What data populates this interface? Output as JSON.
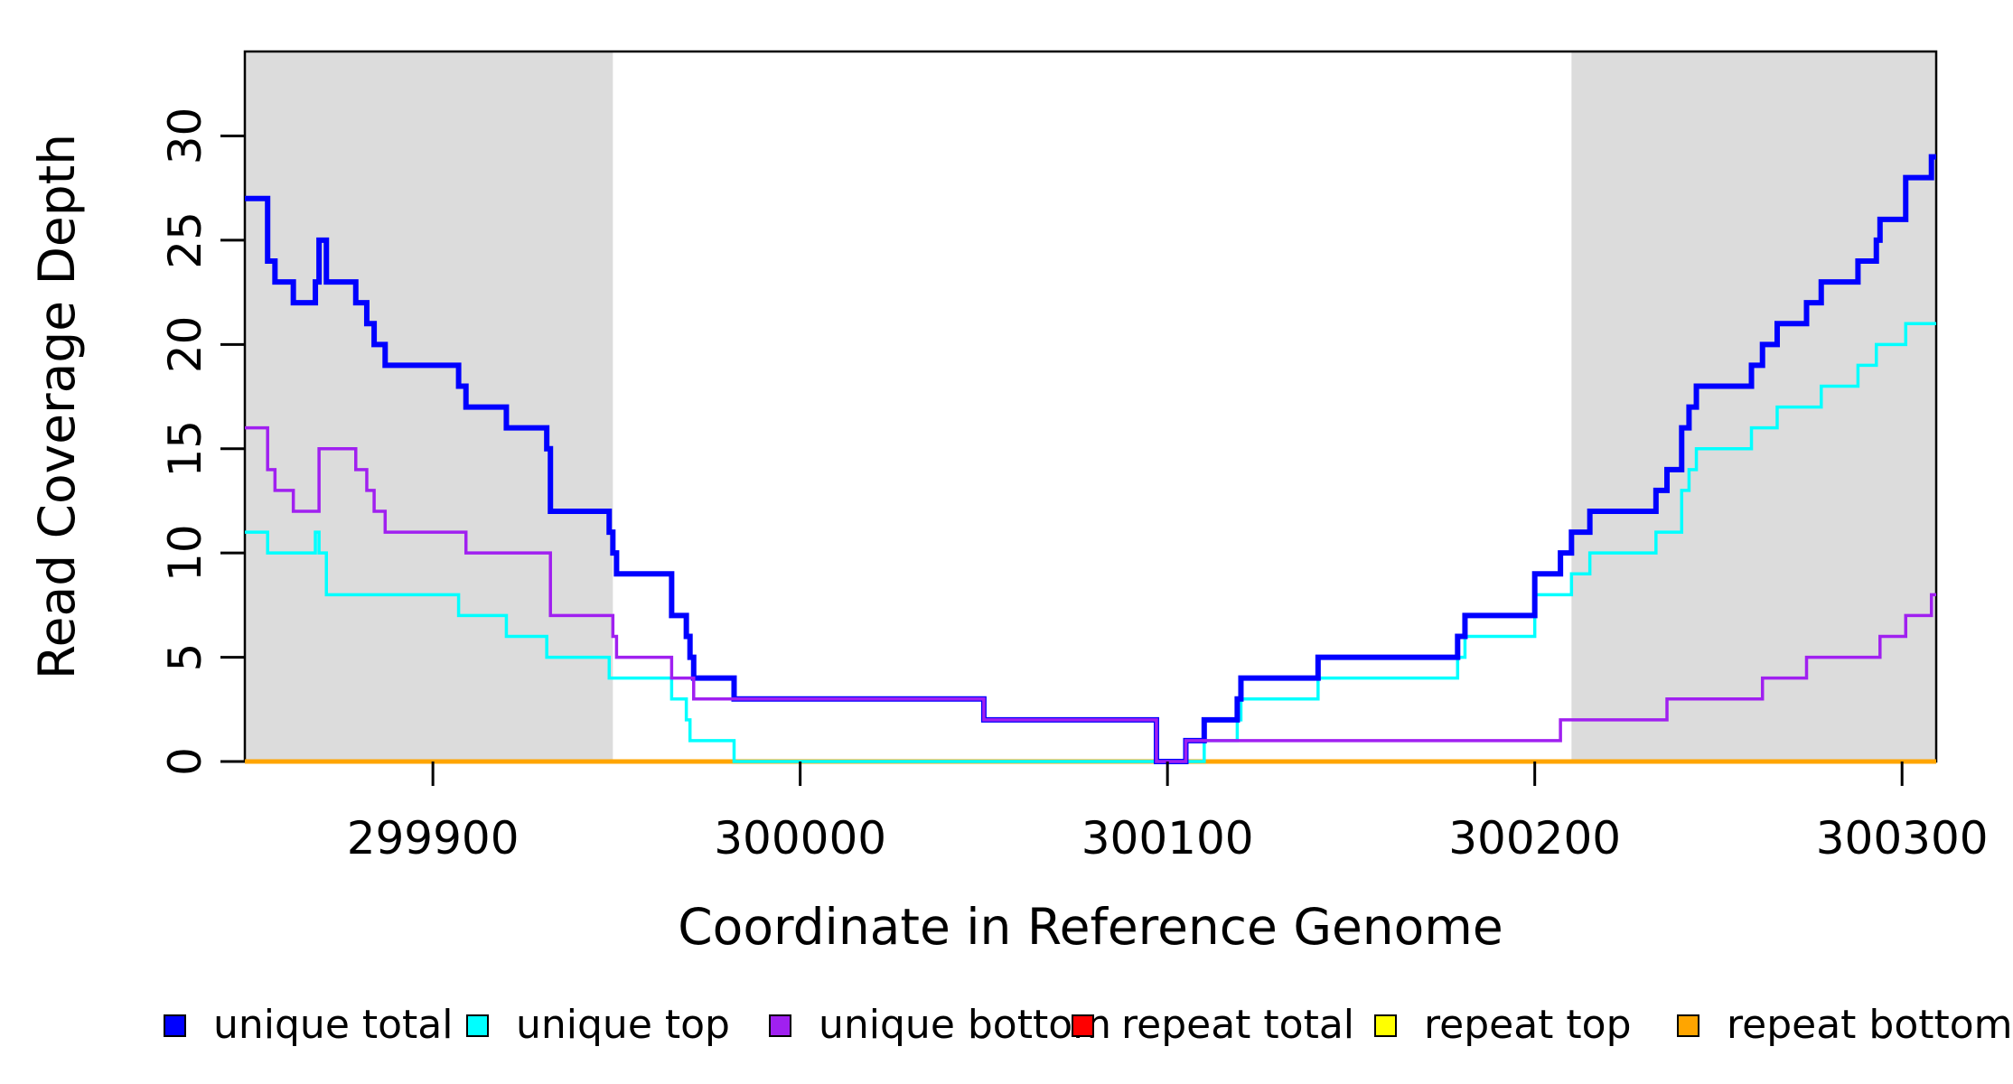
{
  "chart_data": {
    "type": "line",
    "subtype": "step-coverage-plot",
    "title": "",
    "xlabel": "Coordinate in Reference Genome",
    "ylabel": "Read Coverage Depth",
    "xlim": [
      299848.8,
      300309.3
    ],
    "ylim": [
      0,
      34.05
    ],
    "x_ticks": [
      299900,
      300000,
      300100,
      300200,
      300300
    ],
    "y_ticks": [
      0,
      5,
      10,
      15,
      20,
      25,
      30
    ],
    "grid": false,
    "shaded_region_color": "#DCDCDC",
    "shaded_regions": [
      {
        "x0": 299848.8,
        "x1": 299949
      },
      {
        "x0": 300210,
        "x1": 300309.3
      }
    ],
    "series": [
      {
        "name": "repeat total",
        "color": "#FF0000",
        "width": 4,
        "steps": [
          [
            299848.8,
            0
          ]
        ]
      },
      {
        "name": "repeat top",
        "color": "#FFFF00",
        "width": 4,
        "steps": [
          [
            299848.8,
            0
          ]
        ]
      },
      {
        "name": "repeat bottom",
        "color": "#FFA500",
        "width": 5,
        "steps": [
          [
            299848.8,
            0
          ]
        ]
      },
      {
        "name": "unique top",
        "color": "#00FFFF",
        "width": 3.5,
        "steps": [
          [
            299848.8,
            11
          ],
          [
            299855,
            10
          ],
          [
            299868,
            11
          ],
          [
            299869,
            10
          ],
          [
            299871,
            8
          ],
          [
            299907,
            7
          ],
          [
            299920,
            6
          ],
          [
            299931,
            5
          ],
          [
            299948,
            4
          ],
          [
            299965,
            3
          ],
          [
            299969,
            2
          ],
          [
            299970,
            1
          ],
          [
            299982,
            0
          ],
          [
            300110,
            1
          ],
          [
            300119,
            2
          ],
          [
            300120,
            3
          ],
          [
            300141,
            4
          ],
          [
            300179,
            5
          ],
          [
            300181,
            6
          ],
          [
            300200,
            8
          ],
          [
            300210,
            9
          ],
          [
            300215,
            10
          ],
          [
            300233,
            11
          ],
          [
            300240,
            13
          ],
          [
            300242,
            14
          ],
          [
            300244,
            15
          ],
          [
            300259,
            16
          ],
          [
            300266,
            17
          ],
          [
            300278,
            18
          ],
          [
            300288,
            19
          ],
          [
            300293,
            20
          ],
          [
            300301,
            21
          ]
        ]
      },
      {
        "name": "unique total",
        "color": "#0000FF",
        "width": 6,
        "steps": [
          [
            299848.8,
            27
          ],
          [
            299855,
            24
          ],
          [
            299857,
            23
          ],
          [
            299862,
            22
          ],
          [
            299868,
            23
          ],
          [
            299869,
            25
          ],
          [
            299871,
            23
          ],
          [
            299879,
            22
          ],
          [
            299882,
            21
          ],
          [
            299884,
            20
          ],
          [
            299887,
            19
          ],
          [
            299907,
            18
          ],
          [
            299909,
            17
          ],
          [
            299920,
            16
          ],
          [
            299931,
            15
          ],
          [
            299932,
            12
          ],
          [
            299948,
            11
          ],
          [
            299949,
            10
          ],
          [
            299950,
            9
          ],
          [
            299965,
            7
          ],
          [
            299969,
            6
          ],
          [
            299970,
            5
          ],
          [
            299971,
            4
          ],
          [
            299982,
            3
          ],
          [
            300050,
            2
          ],
          [
            300097,
            0
          ],
          [
            300105,
            1
          ],
          [
            300110,
            2
          ],
          [
            300119,
            3
          ],
          [
            300120,
            4
          ],
          [
            300141,
            5
          ],
          [
            300179,
            6
          ],
          [
            300181,
            7
          ],
          [
            300200,
            9
          ],
          [
            300207,
            10
          ],
          [
            300210,
            11
          ],
          [
            300215,
            12
          ],
          [
            300233,
            13
          ],
          [
            300236,
            14
          ],
          [
            300240,
            16
          ],
          [
            300242,
            17
          ],
          [
            300244,
            18
          ],
          [
            300259,
            19
          ],
          [
            300262,
            20
          ],
          [
            300266,
            21
          ],
          [
            300274,
            22
          ],
          [
            300278,
            23
          ],
          [
            300288,
            24
          ],
          [
            300293,
            25
          ],
          [
            300294,
            26
          ],
          [
            300301,
            28
          ],
          [
            300308,
            29
          ]
        ]
      },
      {
        "name": "unique bottom",
        "color": "#A020F0",
        "width": 3.5,
        "steps": [
          [
            299848.8,
            16
          ],
          [
            299855,
            14
          ],
          [
            299857,
            13
          ],
          [
            299862,
            12
          ],
          [
            299869,
            15
          ],
          [
            299879,
            14
          ],
          [
            299882,
            13
          ],
          [
            299884,
            12
          ],
          [
            299887,
            11
          ],
          [
            299909,
            10
          ],
          [
            299932,
            7
          ],
          [
            299949,
            6
          ],
          [
            299950,
            5
          ],
          [
            299965,
            4
          ],
          [
            299971,
            3
          ],
          [
            300050,
            2
          ],
          [
            300097,
            0
          ],
          [
            300105,
            1
          ],
          [
            300207,
            2
          ],
          [
            300236,
            3
          ],
          [
            300262,
            4
          ],
          [
            300274,
            5
          ],
          [
            300294,
            6
          ],
          [
            300301,
            7
          ],
          [
            300308,
            8
          ]
        ]
      }
    ],
    "legend_position": "bottom"
  },
  "legend": {
    "items": [
      {
        "label": "unique total",
        "color": "#0000FF"
      },
      {
        "label": "unique top",
        "color": "#00FFFF"
      },
      {
        "label": "unique bottom",
        "color": "#A020F0"
      },
      {
        "label": "repeat total",
        "color": "#FF0000"
      },
      {
        "label": "repeat top",
        "color": "#FFFF00"
      },
      {
        "label": "repeat bottom",
        "color": "#FFA500"
      }
    ],
    "x_positions": [
      181,
      516,
      851,
      1186,
      1521,
      1856
    ]
  },
  "axes_text": {
    "x_title": "Coordinate in Reference Genome",
    "y_title": "Read Coverage Depth"
  }
}
